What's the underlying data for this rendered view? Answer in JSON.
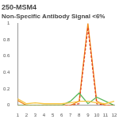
{
  "chart_data": {
    "type": "line",
    "title": "250-MSM4",
    "subtitle": "Non-Specific Antibody Signal <6%",
    "categories": [
      "1",
      "2",
      "3",
      "4",
      "5",
      "6",
      "7",
      "8",
      "9",
      "10",
      "11",
      "12"
    ],
    "series": [
      {
        "color": "#f5c542",
        "values": [
          0.08,
          0.02,
          0.03,
          0.02,
          0.02,
          0.02,
          0.03,
          0.05,
          0.05,
          0.03,
          0.02,
          0.05
        ]
      },
      {
        "color": "#5cb85c",
        "values": [
          0,
          0,
          0,
          0,
          0,
          0,
          0.05,
          0.15,
          0.02,
          0.1,
          0.05,
          0
        ]
      },
      {
        "color": "#e0401c",
        "line_style": "dashed",
        "values": [
          0,
          0,
          0,
          0,
          0,
          0,
          0,
          0.02,
          0.95,
          0.02,
          0,
          0
        ]
      },
      {
        "color": "#f28c1c",
        "values": [
          0.06,
          0,
          0,
          0,
          0,
          0,
          0,
          0.05,
          1,
          0.05,
          0,
          0
        ]
      }
    ],
    "ylim": [
      0,
      1
    ],
    "yticks": [
      0,
      0.2,
      0.4,
      0.6,
      0.8,
      1
    ],
    "grid": false
  }
}
